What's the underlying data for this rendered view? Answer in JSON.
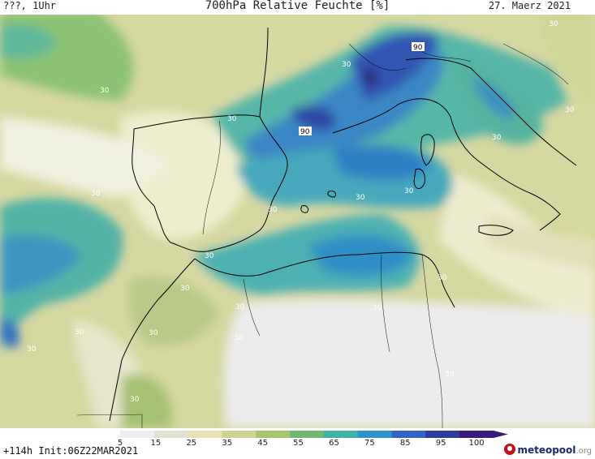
{
  "header": {
    "left": "???, 1Uhr",
    "title": "700hPa Relative Feuchte [%]",
    "date": "27. Maerz 2021"
  },
  "map": {
    "contour_labels": [
      "30",
      "30",
      "90",
      "30",
      "30",
      "90",
      "30",
      "30",
      "30",
      "30",
      "30",
      "30",
      "30",
      "30",
      "30",
      "30",
      "30",
      "30",
      "30",
      "30",
      "30",
      "30",
      "30"
    ]
  },
  "colorbar": {
    "labels": [
      "5",
      "15",
      "25",
      "35",
      "45",
      "55",
      "65",
      "75",
      "85",
      "95",
      "100"
    ],
    "colors": [
      "#efefef",
      "#e2e2d0",
      "#e6e2b4",
      "#cfd495",
      "#a8c46e",
      "#72b873",
      "#3eb2a4",
      "#2f92c8",
      "#3264c3",
      "#2d3d9e",
      "#3b1c7a"
    ]
  },
  "footer": {
    "run_info": "+114h Init:06Z22MAR2021",
    "logo_main": "meteopool",
    "logo_suffix": ".org"
  }
}
